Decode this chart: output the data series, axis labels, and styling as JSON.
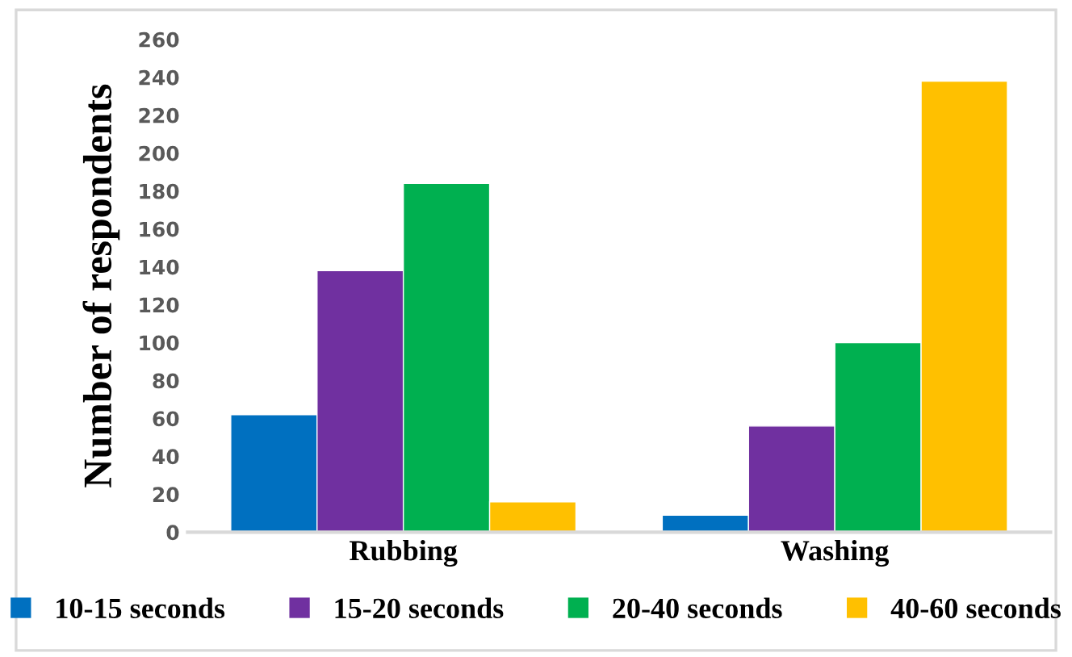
{
  "chart_data": {
    "type": "bar",
    "ylabel": "Number of respondents",
    "categories": [
      "Rubbing",
      "Washing"
    ],
    "series": [
      {
        "name": "10-15 seconds",
        "color": "#0070c0",
        "values": [
          62,
          9
        ]
      },
      {
        "name": "15-20 seconds",
        "color": "#7030a0",
        "values": [
          138,
          56
        ]
      },
      {
        "name": "20-40 seconds",
        "color": "#00b050",
        "values": [
          184,
          100
        ]
      },
      {
        "name": "40-60 seconds",
        "color": "#ffc000",
        "values": [
          16,
          238
        ]
      }
    ],
    "ylim": [
      0,
      260
    ],
    "yticks": [
      0,
      20,
      40,
      60,
      80,
      100,
      120,
      140,
      160,
      180,
      200,
      220,
      240,
      260
    ],
    "grid": false,
    "legend": "bottom"
  }
}
